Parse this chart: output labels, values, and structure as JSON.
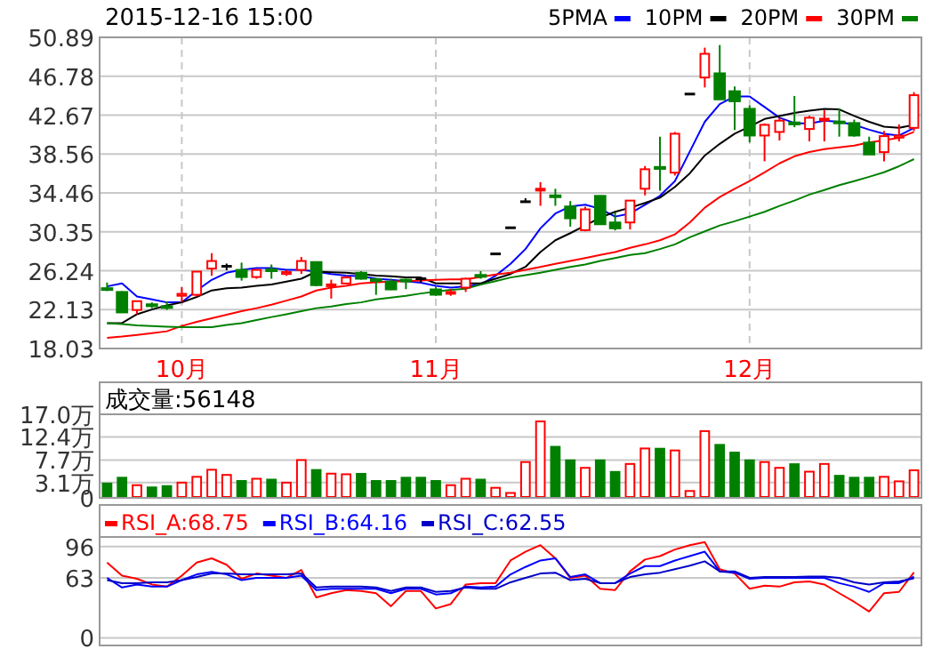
{
  "chart_data": [
    {
      "type": "candlestick",
      "title": "2015-12-16 15:00",
      "categories": [
        null,
        null,
        null,
        null,
        null,
        "10月",
        null,
        null,
        null,
        null,
        null,
        null,
        null,
        null,
        null,
        null,
        null,
        null,
        null,
        null,
        null,
        null,
        "11月",
        null,
        null,
        null,
        null,
        null,
        null,
        null,
        null,
        null,
        null,
        null,
        null,
        null,
        null,
        null,
        null,
        null,
        null,
        null,
        null,
        "12月",
        null,
        null,
        null,
        null,
        null,
        null,
        null,
        null,
        null,
        null,
        null
      ],
      "ohlc": [
        [
          24.4,
          25.0,
          24.1,
          24.3
        ],
        [
          24.0,
          24.1,
          21.8,
          21.84
        ],
        [
          22.1,
          23.1,
          21.65,
          23.03
        ],
        [
          22.7,
          22.9,
          22.3,
          22.5
        ],
        [
          22.5,
          23.0,
          22.1,
          22.4
        ],
        [
          23.6,
          24.5,
          22.9,
          23.8
        ],
        [
          23.7,
          26.2,
          23.5,
          26.15
        ],
        [
          26.47,
          28.1,
          25.7,
          27.27
        ],
        [
          26.71,
          27.0,
          26.3,
          26.71
        ],
        [
          26.33,
          27.1,
          25.2,
          25.58
        ],
        [
          25.58,
          26.4,
          25.4,
          26.33
        ],
        [
          26.4,
          26.9,
          25.4,
          26.2
        ],
        [
          25.9,
          26.3,
          25.7,
          26.1
        ],
        [
          26.33,
          27.7,
          25.9,
          27.27
        ],
        [
          27.16,
          27.2,
          24.6,
          24.72
        ],
        [
          24.7,
          25.3,
          23.3,
          24.8
        ],
        [
          24.9,
          25.7,
          24.9,
          25.53
        ],
        [
          26.03,
          26.2,
          25.3,
          25.4
        ],
        [
          25.35,
          25.5,
          23.7,
          25.2
        ],
        [
          25.1,
          25.4,
          24.2,
          24.27
        ],
        [
          25.3,
          25.4,
          24.3,
          25.2
        ],
        [
          25.4,
          25.5,
          25.0,
          25.4
        ],
        [
          24.27,
          24.5,
          23.6,
          23.71
        ],
        [
          23.9,
          24.3,
          23.6,
          24.0
        ],
        [
          24.46,
          25.5,
          24.0,
          25.4
        ],
        [
          25.8,
          26.2,
          25.4,
          25.6
        ],
        [
          28.02,
          28.02,
          28.02,
          28.02
        ],
        [
          30.78,
          30.78,
          30.78,
          30.78
        ],
        [
          33.53,
          33.9,
          33.53,
          33.53
        ],
        [
          34.8,
          35.6,
          33.1,
          34.9
        ],
        [
          34.2,
          34.9,
          33.1,
          34.1
        ],
        [
          33.03,
          33.6,
          30.9,
          31.78
        ],
        [
          30.53,
          33.0,
          30.4,
          32.72
        ],
        [
          34.15,
          34.2,
          31.1,
          31.15
        ],
        [
          31.34,
          32.4,
          30.5,
          30.72
        ],
        [
          31.34,
          33.7,
          30.6,
          33.65
        ],
        [
          34.9,
          37.3,
          34.2,
          36.96
        ],
        [
          37.2,
          40.4,
          34.7,
          37.0
        ],
        [
          36.6,
          40.9,
          36.3,
          40.71
        ],
        [
          44.9,
          44.9,
          44.9,
          44.9
        ],
        [
          46.65,
          49.8,
          45.6,
          49.15
        ],
        [
          47.09,
          50.08,
          44.3,
          44.34
        ],
        [
          45.2,
          45.7,
          41.1,
          44.14
        ],
        [
          43.34,
          43.7,
          39.8,
          40.52
        ],
        [
          40.52,
          41.8,
          37.8,
          41.65
        ],
        [
          40.9,
          42.4,
          40.0,
          42.09
        ],
        [
          41.9,
          44.7,
          41.4,
          41.7
        ],
        [
          41.21,
          42.6,
          39.9,
          42.4
        ],
        [
          42.2,
          43.2,
          39.9,
          42.3
        ],
        [
          42.0,
          43.4,
          40.4,
          41.9
        ],
        [
          41.84,
          42.2,
          40.4,
          40.52
        ],
        [
          39.77,
          40.4,
          38.5,
          38.52
        ],
        [
          38.77,
          41.0,
          37.8,
          40.46
        ],
        [
          40.3,
          41.7,
          39.9,
          40.5
        ],
        [
          41.33,
          45.1,
          41.0,
          44.78
        ]
      ],
      "series": [
        {
          "name": "5PMA",
          "type": "line",
          "color": "#0000ff",
          "values": [
            24.59,
            24.91,
            23.52,
            23.22,
            22.9,
            22.9,
            24.16,
            25.28,
            26.03,
            26.33,
            26.52,
            26.52,
            26.33,
            26.33,
            26.15,
            25.9,
            25.72,
            25.66,
            25.4,
            25.28,
            25.15,
            24.97,
            24.65,
            24.46,
            24.59,
            24.78,
            25.72,
            26.97,
            28.53,
            30.72,
            32.28,
            33.03,
            33.21,
            32.78,
            31.96,
            32.28,
            33.21,
            34.15,
            35.71,
            38.84,
            41.97,
            43.84,
            44.65,
            44.65,
            43.53,
            42.4,
            41.84,
            41.78,
            42.08,
            41.97,
            41.65,
            41.14,
            40.71,
            40.52,
            41.33
          ]
        },
        {
          "name": "10PM",
          "type": "line",
          "color": "#000000",
          "values": [
            20.71,
            20.71,
            21.65,
            22.15,
            22.59,
            22.9,
            23.47,
            24.16,
            24.4,
            24.46,
            24.65,
            24.78,
            25.1,
            25.4,
            26.15,
            26.09,
            26.03,
            25.9,
            25.72,
            25.66,
            25.53,
            25.53,
            24.91,
            24.91,
            24.91,
            24.91,
            25.4,
            25.9,
            26.65,
            28.21,
            29.46,
            30.21,
            31.02,
            31.85,
            32.46,
            32.9,
            33.4,
            33.96,
            35.09,
            36.53,
            38.41,
            39.64,
            40.71,
            41.46,
            42.27,
            42.59,
            42.9,
            43.15,
            43.34,
            43.28,
            42.59,
            41.97,
            41.46,
            41.33,
            41.65
          ]
        },
        {
          "name": "20PM",
          "type": "line",
          "color": "#ff0000",
          "values": [
            19.15,
            19.29,
            19.47,
            19.66,
            19.85,
            20.41,
            20.84,
            21.22,
            21.59,
            21.97,
            22.29,
            22.66,
            23.09,
            23.52,
            24.16,
            24.46,
            24.65,
            24.91,
            25.02,
            25.1,
            25.15,
            25.21,
            25.28,
            25.34,
            25.34,
            25.58,
            25.85,
            26.03,
            26.33,
            26.65,
            26.97,
            27.27,
            27.59,
            27.91,
            28.21,
            28.66,
            29.03,
            29.46,
            30.08,
            31.34,
            32.9,
            34.02,
            34.9,
            35.71,
            36.64,
            37.58,
            38.33,
            38.78,
            39.08,
            39.27,
            39.46,
            39.78,
            40.02,
            40.28,
            40.9
          ]
        },
        {
          "name": "30PM",
          "type": "line",
          "color": "#008000",
          "values": [
            20.71,
            20.6,
            20.47,
            20.41,
            20.34,
            20.28,
            20.28,
            20.28,
            20.52,
            20.71,
            21.03,
            21.35,
            21.65,
            21.97,
            22.29,
            22.47,
            22.72,
            22.9,
            23.22,
            23.41,
            23.6,
            23.84,
            24.03,
            24.22,
            24.35,
            24.78,
            25.15,
            25.53,
            25.77,
            26.03,
            26.33,
            26.65,
            26.9,
            27.27,
            27.59,
            27.91,
            28.1,
            28.53,
            29.03,
            29.78,
            30.4,
            31.02,
            31.47,
            31.96,
            32.46,
            33.09,
            33.65,
            34.28,
            34.77,
            35.28,
            35.71,
            36.16,
            36.64,
            37.28,
            38.03
          ]
        }
      ],
      "ylim": [
        18.03,
        50.89
      ],
      "yticks": [
        18.03,
        22.13,
        26.24,
        30.35,
        34.46,
        38.56,
        42.67,
        46.78,
        50.89
      ],
      "grid": true,
      "legend": "top right"
    },
    {
      "type": "bar",
      "title": "成交量:56148",
      "tick_labels": "y",
      "categories": [
        null,
        null,
        null,
        null,
        null,
        null,
        null,
        null,
        null,
        null,
        null,
        null,
        null,
        null,
        null,
        null,
        null,
        null,
        null,
        null,
        null,
        null,
        null,
        null,
        null,
        null,
        null,
        null,
        null,
        null,
        null,
        null,
        null,
        null,
        null,
        null,
        null,
        null,
        null,
        null,
        null,
        null,
        null,
        null,
        null,
        null,
        null,
        null,
        null,
        null,
        null,
        null,
        null,
        null,
        null
      ],
      "values": [
        3.1,
        4.28,
        2.58,
        2.31,
        2.58,
        3.1,
        4.28,
        5.72,
        4.67,
        3.62,
        3.89,
        3.89,
        3.1,
        7.69,
        5.85,
        4.93,
        4.8,
        5.07,
        3.62,
        3.62,
        4.28,
        4.28,
        3.62,
        2.58,
        3.89,
        3.89,
        2.05,
        1.0,
        7.29,
        15.55,
        10.57,
        7.82,
        6.11,
        7.82,
        5.46,
        6.9,
        10.05,
        10.18,
        9.65,
        1.4,
        13.58,
        10.96,
        9.39,
        7.82,
        7.29,
        6.11,
        7.03,
        5.33,
        6.9,
        4.67,
        4.28,
        4.28,
        4.28,
        3.36,
        5.61
      ],
      "colors": [
        "#008000",
        "#008000",
        "#ff0000",
        "#008000",
        "#008000",
        "#ff0000",
        "#ff0000",
        "#ff0000",
        "#ff0000",
        "#008000",
        "#ff0000",
        "#008000",
        "#ff0000",
        "#ff0000",
        "#008000",
        "#ff0000",
        "#ff0000",
        "#008000",
        "#008000",
        "#008000",
        "#008000",
        "#008000",
        "#008000",
        "#ff0000",
        "#ff0000",
        "#008000",
        "#ff0000",
        "#ff0000",
        "#ff0000",
        "#ff0000",
        "#008000",
        "#008000",
        "#ff0000",
        "#008000",
        "#008000",
        "#ff0000",
        "#ff0000",
        "#008000",
        "#ff0000",
        "#ff0000",
        "#ff0000",
        "#008000",
        "#008000",
        "#008000",
        "#ff0000",
        "#ff0000",
        "#008000",
        "#ff0000",
        "#ff0000",
        "#008000",
        "#008000",
        "#008000",
        "#ff0000",
        "#ff0000",
        "#ff0000"
      ],
      "ylim": [
        0,
        17.0
      ],
      "yticks": [
        0,
        {
          "value": 3.1,
          "label": "3.1万"
        },
        {
          "value": 7.7,
          "label": "7.7万"
        },
        {
          "value": 12.4,
          "label": "12.4万"
        },
        {
          "value": 17.0,
          "label": "17.0万"
        }
      ],
      "grid": true
    },
    {
      "type": "line",
      "tick_labels": "y",
      "categories": [
        null,
        null,
        null,
        null,
        null,
        null,
        null,
        null,
        null,
        null,
        null,
        null,
        null,
        null,
        null,
        null,
        null,
        null,
        null,
        null,
        null,
        null,
        null,
        null,
        null,
        null,
        null,
        null,
        null,
        null,
        null,
        null,
        null,
        null,
        null,
        null,
        null,
        null,
        null,
        null,
        null,
        null,
        null,
        null,
        null,
        null,
        null,
        null,
        null,
        null,
        null,
        null,
        null,
        null,
        null
      ],
      "series": [
        {
          "name": "RSI_A:68.75",
          "color": "#ff0000",
          "values": [
            79.1,
            65.3,
            62.1,
            56.1,
            53.8,
            65.3,
            79.1,
            83.6,
            76.8,
            62.1,
            67.6,
            65.3,
            63,
            71.3,
            42.4,
            46.9,
            50.2,
            49.2,
            46.9,
            33.2,
            49.2,
            49.2,
            30.9,
            35.5,
            56.1,
            57.5,
            57.5,
            81.3,
            90.5,
            97.4,
            83.6,
            63,
            65.3,
            51.5,
            50.2,
            69.9,
            82.3,
            85.9,
            92.8,
            97.4,
            100.6,
            72.2,
            67.6,
            51.5,
            54.8,
            53.8,
            58.4,
            59.3,
            56.1,
            46.9,
            37.8,
            27.7,
            46.9,
            48.3,
            68.75
          ]
        },
        {
          "name": "RSI_B:64.16",
          "color": "#0000ff",
          "values": [
            63,
            52.9,
            56.1,
            53.8,
            53.8,
            60.7,
            66.7,
            69.4,
            66.7,
            60.7,
            63,
            63,
            63,
            65.3,
            50.2,
            51.5,
            51.5,
            51.5,
            51.5,
            46.9,
            51.5,
            51.5,
            45.6,
            46.9,
            53.8,
            52.9,
            53.8,
            66.7,
            74.5,
            81.3,
            83.6,
            63.9,
            66.7,
            57.5,
            57.5,
            67.6,
            75.4,
            75.4,
            81.3,
            85.9,
            90.5,
            69.9,
            68.5,
            62.1,
            63,
            63,
            63,
            63,
            63,
            57.5,
            53.8,
            48.3,
            57.5,
            57.5,
            64.16
          ]
        },
        {
          "name": "RSI_C:62.55",
          "color": "#0000c8",
          "values": [
            60.7,
            57.5,
            57.5,
            58.4,
            58.4,
            60.7,
            63.9,
            67.6,
            67.6,
            66.7,
            66.7,
            66.7,
            66.7,
            67.6,
            52.9,
            53.8,
            53.8,
            53.8,
            52.9,
            49.2,
            52.9,
            52.9,
            48.3,
            49.2,
            52.9,
            51.5,
            51.5,
            58.4,
            63,
            67.6,
            68.5,
            60.7,
            62.1,
            57.5,
            57.5,
            63.9,
            66.7,
            68.5,
            72.2,
            75.8,
            80.4,
            69.9,
            69.9,
            63,
            63.9,
            63.9,
            63.9,
            64.4,
            64.4,
            63,
            58.4,
            56.1,
            58.4,
            59.3,
            62.55
          ]
        }
      ],
      "ylim": [
        -8,
        106
      ],
      "yticks": [
        0,
        63,
        96
      ],
      "grid": true,
      "legend": "top left"
    }
  ]
}
